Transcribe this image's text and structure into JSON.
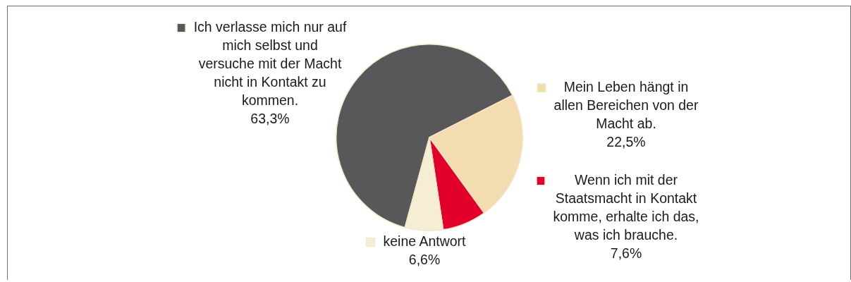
{
  "chart_data": {
    "type": "pie",
    "categories": [
      "Ich verlasse mich nur auf mich selbst und versuche mit der Macht nicht in Kontakt zu kommen.",
      "Mein Leben hängt in allen Bereichen von der Macht ab.",
      "Wenn ich mit der Staatsmacht in Kontakt komme, erhalte ich das, was ich brauche.",
      "keine Antwort"
    ],
    "values": [
      63.3,
      22.5,
      7.6,
      6.6
    ],
    "colors": [
      "#58585a",
      "#f2dcb0",
      "#e2002a",
      "#f6edd5"
    ],
    "value_labels": [
      "63,3%",
      "22,5%",
      "7,6%",
      "6,6%"
    ],
    "legend": "right"
  }
}
